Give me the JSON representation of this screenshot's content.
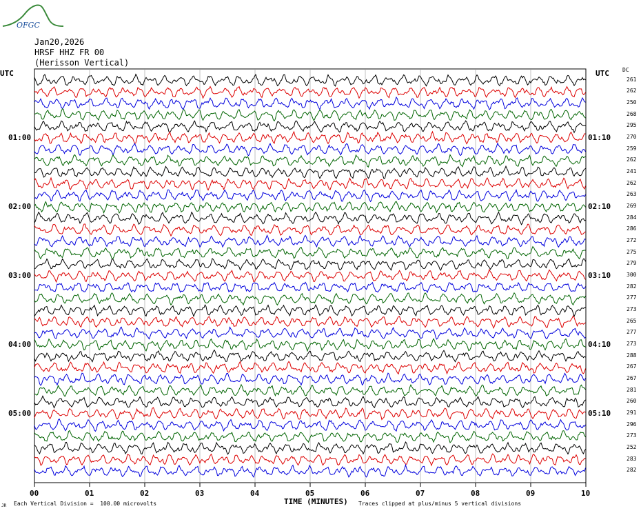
{
  "logo": {
    "text": "OFGC",
    "colors": {
      "curve": "#3a8a3a",
      "text": "#1a4f9c"
    }
  },
  "header": {
    "date": "Jan20,2026",
    "station": "HRSF HHZ FR 00",
    "location": "(Herisson Vertical)"
  },
  "axis": {
    "left_tz": "UTC",
    "right_tz": "UTC",
    "dc_label": "DC",
    "xlabel": "TIME (MINUTES)",
    "note_left": "Each Vertical Division =  100.00 microvolts",
    "note_right": "Traces clipped at plus/minus 5 vertical divisions",
    "corner_mark": "JR"
  },
  "chart_data": {
    "type": "line",
    "title": "",
    "xlabel": "TIME (MINUTES)",
    "x_ticks": [
      "00",
      "01",
      "02",
      "03",
      "04",
      "05",
      "06",
      "07",
      "08",
      "09",
      "10"
    ],
    "xlim": [
      0,
      10
    ],
    "left_time_labels": [
      "01:00",
      "02:00",
      "03:00",
      "04:00",
      "05:00"
    ],
    "right_time_labels": [
      "01:10",
      "02:10",
      "03:10",
      "04:10",
      "05:10"
    ],
    "trace_colors": [
      "#000000",
      "#dd0000",
      "#0000dd",
      "#006400"
    ],
    "dc_offsets": [
      261,
      262,
      250,
      268,
      295,
      270,
      259,
      262,
      241,
      262,
      263,
      269,
      284,
      286,
      272,
      275,
      279,
      300,
      282,
      277,
      273,
      265,
      277,
      273,
      288,
      267,
      267,
      281,
      260,
      291,
      296,
      273,
      252,
      283,
      282
    ]
  }
}
